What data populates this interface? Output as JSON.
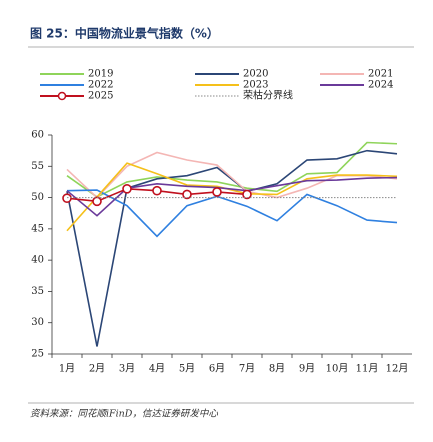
{
  "chart_data": {
    "type": "line",
    "title": "图 25：中国物流业景气指数（%）",
    "source": "资料来源：同花顺iFinD，信达证券研发中心",
    "categories": [
      "1月",
      "2月",
      "3月",
      "4月",
      "5月",
      "6月",
      "7月",
      "8月",
      "9月",
      "10月",
      "11月",
      "12月"
    ],
    "series": [
      {
        "name": "2019",
        "color": "#8fd45a",
        "values": [
          53.5,
          50.1,
          52.5,
          53.3,
          52.8,
          52.5,
          51.5,
          51.0,
          53.8,
          54.0,
          58.8,
          58.6
        ]
      },
      {
        "name": "2020",
        "color": "#2b4676",
        "values": [
          51.0,
          26.2,
          51.5,
          53.0,
          53.5,
          54.8,
          51.0,
          52.2,
          56.0,
          56.2,
          57.5,
          57.0
        ]
      },
      {
        "name": "2021",
        "color": "#f4b6b4",
        "values": [
          54.5,
          50.0,
          55.0,
          57.2,
          56.0,
          55.2,
          51.0,
          50.0,
          51.5,
          53.5,
          53.5,
          53.0
        ]
      },
      {
        "name": "2022",
        "color": "#2f80e0",
        "values": [
          51.1,
          51.2,
          48.7,
          43.8,
          48.7,
          50.2,
          48.6,
          46.3,
          50.5,
          48.7,
          46.4,
          46.0
        ]
      },
      {
        "name": "2023",
        "color": "#f5c01a",
        "values": [
          44.7,
          50.1,
          55.5,
          53.8,
          52.0,
          51.8,
          50.6,
          50.5,
          53.0,
          53.6,
          53.6,
          53.4
        ]
      },
      {
        "name": "2024",
        "color": "#6a3a9a",
        "values": [
          51.1,
          47.1,
          51.5,
          52.2,
          51.8,
          51.6,
          51.1,
          51.9,
          52.7,
          52.8,
          53.1,
          53.2
        ]
      },
      {
        "name": "2025",
        "color": "#c0101e",
        "marker": "circle",
        "values": [
          49.9,
          49.4,
          51.4,
          51.1,
          50.5,
          50.9,
          50.5,
          null,
          null,
          null,
          null,
          null
        ]
      },
      {
        "name": "荣枯分界线",
        "color": "#888888",
        "line_style": "dotted",
        "values": [
          50,
          50,
          50,
          50,
          50,
          50,
          50,
          50,
          50,
          50,
          50,
          50
        ]
      }
    ],
    "ylim": [
      25,
      60
    ],
    "yticks": [
      25,
      30,
      35,
      40,
      45,
      50,
      55,
      60
    ]
  }
}
